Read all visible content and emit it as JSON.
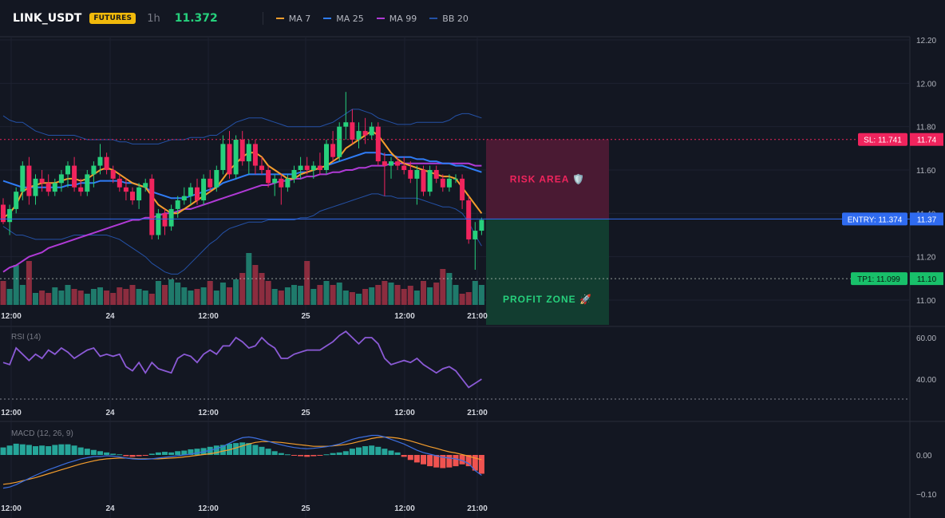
{
  "header": {
    "symbol": "LINK_USDT",
    "badge": "FUTURES",
    "timeframe": "1h",
    "price": "11.372",
    "legend": [
      {
        "label": "MA 7",
        "color": "#f59e2d"
      },
      {
        "label": "MA 25",
        "color": "#2f7cf6"
      },
      {
        "label": "MA 99",
        "color": "#b03ad6"
      },
      {
        "label": "BB 20",
        "color": "#2451a6"
      }
    ]
  },
  "price_axis": {
    "ticks": [
      "12.20",
      "12.00",
      "11.80",
      "11.60",
      "11.40",
      "11.20",
      "11.00"
    ],
    "values": [
      12.2,
      12.0,
      11.8,
      11.6,
      11.4,
      11.2,
      11.0
    ]
  },
  "time_axis": {
    "ticks": [
      "12:00",
      "24",
      "12:00",
      "25",
      "12:00",
      "21:00"
    ]
  },
  "levels": {
    "sl": {
      "label": "SL: 11.741",
      "value": "11.74",
      "price": 11.741,
      "color": "#f0245d"
    },
    "entry": {
      "label": "ENTRY: 11.374",
      "value": "11.37",
      "price": 11.374,
      "color": "#2f6bf0"
    },
    "tp1": {
      "label": "TP1: 11.099",
      "value": "11.10",
      "price": 11.099,
      "color": "#18c06a"
    }
  },
  "zones": {
    "risk": {
      "label": "RISK AREA 🛡️"
    },
    "profit": {
      "label": "PROFIT ZONE 🚀"
    }
  },
  "rsi": {
    "title": "RSI (14)",
    "ticks": [
      "60.00",
      "40.00"
    ],
    "tick_values": [
      60,
      40
    ]
  },
  "macd": {
    "title": "MACD (12, 26, 9)",
    "ticks": [
      "0.00",
      "−0.10"
    ],
    "tick_values": [
      0,
      -0.1
    ]
  },
  "colors": {
    "up": "#26d07c",
    "down": "#f0245d",
    "vol_up": "#1f7a6b",
    "vol_down": "#8c2d3f",
    "rsi": "#8b5ad6",
    "macd_line": "#3d6fe0",
    "signal_line": "#f59e2d"
  },
  "chart_data": {
    "type": "candlestick",
    "price_range": [
      10.98,
      12.22
    ],
    "candles": [
      [
        11.44,
        11.47,
        11.35,
        11.36
      ],
      [
        11.36,
        11.44,
        11.3,
        11.42
      ],
      [
        11.42,
        11.52,
        11.4,
        11.5
      ],
      [
        11.5,
        11.64,
        11.46,
        11.62
      ],
      [
        11.62,
        11.66,
        11.44,
        11.48
      ],
      [
        11.48,
        11.58,
        11.44,
        11.56
      ],
      [
        11.56,
        11.6,
        11.5,
        11.54
      ],
      [
        11.54,
        11.58,
        11.48,
        11.5
      ],
      [
        11.5,
        11.56,
        11.48,
        11.54
      ],
      [
        11.54,
        11.6,
        11.5,
        11.58
      ],
      [
        11.58,
        11.64,
        11.52,
        11.62
      ],
      [
        11.62,
        11.66,
        11.5,
        11.52
      ],
      [
        11.52,
        11.56,
        11.48,
        11.5
      ],
      [
        11.5,
        11.6,
        11.48,
        11.58
      ],
      [
        11.58,
        11.64,
        11.52,
        11.62
      ],
      [
        11.62,
        11.72,
        11.58,
        11.66
      ],
      [
        11.66,
        11.68,
        11.58,
        11.6
      ],
      [
        11.6,
        11.62,
        11.54,
        11.56
      ],
      [
        11.56,
        11.58,
        11.5,
        11.52
      ],
      [
        11.52,
        11.56,
        11.46,
        11.5
      ],
      [
        11.5,
        11.52,
        11.44,
        11.46
      ],
      [
        11.46,
        11.54,
        11.42,
        11.52
      ],
      [
        11.52,
        11.56,
        11.5,
        11.54
      ],
      [
        11.56,
        11.58,
        11.28,
        11.3
      ],
      [
        11.3,
        11.42,
        11.28,
        11.4
      ],
      [
        11.4,
        11.42,
        11.3,
        11.34
      ],
      [
        11.34,
        11.44,
        11.32,
        11.42
      ],
      [
        11.42,
        11.48,
        11.38,
        11.46
      ],
      [
        11.46,
        11.52,
        11.44,
        11.48
      ],
      [
        11.48,
        11.54,
        11.44,
        11.52
      ],
      [
        11.52,
        11.56,
        11.44,
        11.46
      ],
      [
        11.46,
        11.58,
        11.44,
        11.56
      ],
      [
        11.56,
        11.6,
        11.5,
        11.52
      ],
      [
        11.52,
        11.62,
        11.5,
        11.6
      ],
      [
        11.6,
        11.76,
        11.58,
        11.72
      ],
      [
        11.72,
        11.78,
        11.56,
        11.58
      ],
      [
        11.58,
        11.76,
        11.56,
        11.74
      ],
      [
        11.74,
        11.78,
        11.62,
        11.64
      ],
      [
        11.64,
        11.74,
        11.58,
        11.72
      ],
      [
        11.72,
        11.74,
        11.58,
        11.62
      ],
      [
        11.62,
        11.66,
        11.58,
        11.6
      ],
      [
        11.6,
        11.62,
        11.52,
        11.54
      ],
      [
        11.54,
        11.58,
        11.48,
        11.56
      ],
      [
        11.56,
        11.58,
        11.44,
        11.52
      ],
      [
        11.52,
        11.58,
        11.5,
        11.56
      ],
      [
        11.56,
        11.62,
        11.54,
        11.6
      ],
      [
        11.6,
        11.66,
        11.56,
        11.62
      ],
      [
        11.62,
        11.66,
        11.58,
        11.6
      ],
      [
        11.6,
        11.64,
        11.56,
        11.62
      ],
      [
        11.62,
        11.68,
        11.58,
        11.6
      ],
      [
        11.6,
        11.74,
        11.58,
        11.72
      ],
      [
        11.72,
        11.78,
        11.64,
        11.66
      ],
      [
        11.66,
        11.82,
        11.64,
        11.8
      ],
      [
        11.8,
        11.96,
        11.74,
        11.82
      ],
      [
        11.82,
        11.88,
        11.72,
        11.74
      ],
      [
        11.74,
        11.82,
        11.7,
        11.78
      ],
      [
        11.78,
        11.84,
        11.72,
        11.76
      ],
      [
        11.76,
        11.82,
        11.74,
        11.8
      ],
      [
        11.8,
        11.82,
        11.62,
        11.64
      ],
      [
        11.64,
        11.68,
        11.48,
        11.62
      ],
      [
        11.62,
        11.66,
        11.56,
        11.64
      ],
      [
        11.64,
        11.66,
        11.6,
        11.62
      ],
      [
        11.62,
        11.66,
        11.58,
        11.6
      ],
      [
        11.6,
        11.64,
        11.54,
        11.56
      ],
      [
        11.56,
        11.62,
        11.44,
        11.6
      ],
      [
        11.6,
        11.62,
        11.48,
        11.5
      ],
      [
        11.5,
        11.62,
        11.48,
        11.6
      ],
      [
        11.6,
        11.62,
        11.54,
        11.56
      ],
      [
        11.56,
        11.58,
        11.5,
        11.52
      ],
      [
        11.52,
        11.58,
        11.5,
        11.56
      ],
      [
        11.56,
        11.58,
        11.54,
        11.56
      ],
      [
        11.56,
        11.58,
        11.42,
        11.46
      ],
      [
        11.46,
        11.48,
        11.26,
        11.28
      ],
      [
        11.28,
        11.36,
        11.14,
        11.32
      ],
      [
        11.32,
        11.38,
        11.3,
        11.37
      ]
    ],
    "volume": [
      30,
      20,
      50,
      25,
      55,
      15,
      18,
      15,
      22,
      18,
      25,
      20,
      18,
      14,
      20,
      22,
      18,
      15,
      22,
      20,
      25,
      20,
      18,
      14,
      30,
      25,
      32,
      28,
      22,
      18,
      20,
      22,
      30,
      18,
      28,
      22,
      32,
      40,
      65,
      50,
      40,
      30,
      20,
      18,
      22,
      25,
      24,
      55,
      20,
      25,
      30,
      25,
      28,
      18,
      16,
      14,
      20,
      22,
      25,
      30,
      28,
      25,
      20,
      24,
      18,
      30,
      22,
      28,
      45,
      40,
      25,
      14,
      16,
      30,
      25
    ],
    "ma7": [
      11.38,
      11.4,
      11.44,
      11.5,
      11.52,
      11.53,
      11.54,
      11.54,
      11.54,
      11.55,
      11.56,
      11.56,
      11.55,
      11.56,
      11.58,
      11.6,
      11.61,
      11.6,
      11.58,
      11.56,
      11.54,
      11.53,
      11.52,
      11.48,
      11.44,
      11.42,
      11.4,
      11.4,
      11.42,
      11.44,
      11.46,
      11.48,
      11.5,
      11.52,
      11.56,
      11.6,
      11.63,
      11.66,
      11.68,
      11.68,
      11.66,
      11.62,
      11.6,
      11.58,
      11.56,
      11.56,
      11.58,
      11.59,
      11.6,
      11.61,
      11.62,
      11.64,
      11.66,
      11.7,
      11.72,
      11.74,
      11.76,
      11.78,
      11.76,
      11.72,
      11.68,
      11.65,
      11.63,
      11.62,
      11.61,
      11.6,
      11.59,
      11.58,
      11.57,
      11.57,
      11.56,
      11.52,
      11.48,
      11.44,
      11.4
    ],
    "ma25": [
      11.55,
      11.54,
      11.53,
      11.52,
      11.52,
      11.52,
      11.52,
      11.52,
      11.52,
      11.52,
      11.53,
      11.53,
      11.54,
      11.54,
      11.54,
      11.55,
      11.55,
      11.55,
      11.55,
      11.54,
      11.54,
      11.53,
      11.52,
      11.5,
      11.49,
      11.48,
      11.47,
      11.47,
      11.47,
      11.48,
      11.49,
      11.5,
      11.51,
      11.52,
      11.54,
      11.55,
      11.56,
      11.57,
      11.58,
      11.58,
      11.58,
      11.58,
      11.58,
      11.58,
      11.58,
      11.58,
      11.59,
      11.59,
      11.6,
      11.61,
      11.62,
      11.63,
      11.64,
      11.65,
      11.66,
      11.67,
      11.68,
      11.68,
      11.68,
      11.67,
      11.67,
      11.66,
      11.66,
      11.66,
      11.65,
      11.65,
      11.64,
      11.64,
      11.63,
      11.63,
      11.62,
      11.62,
      11.61,
      11.6,
      11.59
    ],
    "ma99": [
      11.13,
      11.15,
      11.16,
      11.18,
      11.2,
      11.21,
      11.22,
      11.24,
      11.25,
      11.26,
      11.27,
      11.28,
      11.29,
      11.3,
      11.31,
      11.32,
      11.33,
      11.34,
      11.35,
      11.36,
      11.37,
      11.37,
      11.38,
      11.38,
      11.39,
      11.4,
      11.4,
      11.41,
      11.42,
      11.42,
      11.43,
      11.44,
      11.45,
      11.46,
      11.47,
      11.48,
      11.49,
      11.5,
      11.51,
      11.52,
      11.53,
      11.53,
      11.54,
      11.55,
      11.55,
      11.56,
      11.56,
      11.57,
      11.57,
      11.58,
      11.58,
      11.59,
      11.59,
      11.6,
      11.6,
      11.61,
      11.61,
      11.62,
      11.62,
      11.62,
      11.63,
      11.63,
      11.63,
      11.63,
      11.63,
      11.63,
      11.63,
      11.63,
      11.63,
      11.63,
      11.63,
      11.63,
      11.63,
      11.62,
      11.62
    ],
    "bb_upper": [
      11.85,
      11.83,
      11.82,
      11.82,
      11.8,
      11.78,
      11.77,
      11.76,
      11.76,
      11.76,
      11.76,
      11.76,
      11.75,
      11.74,
      11.74,
      11.74,
      11.74,
      11.74,
      11.73,
      11.73,
      11.72,
      11.72,
      11.72,
      11.72,
      11.72,
      11.73,
      11.74,
      11.74,
      11.74,
      11.75,
      11.75,
      11.75,
      11.76,
      11.76,
      11.78,
      11.8,
      11.82,
      11.83,
      11.84,
      11.84,
      11.84,
      11.83,
      11.82,
      11.81,
      11.8,
      11.8,
      11.8,
      11.8,
      11.8,
      11.8,
      11.81,
      11.82,
      11.84,
      11.86,
      11.88,
      11.88,
      11.87,
      11.86,
      11.84,
      11.83,
      11.82,
      11.81,
      11.81,
      11.81,
      11.82,
      11.82,
      11.82,
      11.82,
      11.82,
      11.83,
      11.85,
      11.86,
      11.86,
      11.85,
      11.84
    ],
    "bb_lower": [
      11.34,
      11.32,
      11.3,
      11.3,
      11.29,
      11.28,
      11.28,
      11.28,
      11.28,
      11.28,
      11.29,
      11.3,
      11.3,
      11.3,
      11.3,
      11.3,
      11.3,
      11.29,
      11.28,
      11.26,
      11.24,
      11.22,
      11.2,
      11.17,
      11.15,
      11.13,
      11.12,
      11.12,
      11.14,
      11.17,
      11.2,
      11.23,
      11.26,
      11.28,
      11.31,
      11.33,
      11.34,
      11.35,
      11.36,
      11.36,
      11.36,
      11.37,
      11.37,
      11.37,
      11.37,
      11.37,
      11.38,
      11.38,
      11.39,
      11.41,
      11.42,
      11.43,
      11.44,
      11.45,
      11.46,
      11.47,
      11.48,
      11.49,
      11.49,
      11.48,
      11.48,
      11.47,
      11.47,
      11.47,
      11.47,
      11.46,
      11.45,
      11.44,
      11.43,
      11.43,
      11.42,
      11.4,
      11.36,
      11.3,
      11.25
    ],
    "rsi_values": [
      48,
      47,
      55,
      52,
      49,
      52,
      50,
      54,
      52,
      55,
      53,
      50,
      52,
      54,
      55,
      51,
      52,
      51,
      52,
      46,
      44,
      48,
      43,
      48,
      45,
      44,
      43,
      50,
      52,
      51,
      48,
      52,
      54,
      52,
      56,
      56,
      60,
      58,
      55,
      56,
      60,
      57,
      55,
      50,
      50,
      52,
      53,
      54,
      54,
      54,
      56,
      58,
      61,
      63,
      60,
      57,
      60,
      60,
      57,
      50,
      47,
      48,
      49,
      48,
      50,
      47,
      45,
      43,
      45,
      46,
      44,
      40,
      36,
      38,
      40
    ],
    "macd_hist": [
      0.012,
      0.015,
      0.018,
      0.017,
      0.016,
      0.014,
      0.015,
      0.014,
      0.016,
      0.017,
      0.017,
      0.015,
      0.012,
      0.01,
      0.008,
      0.006,
      0.004,
      0.002,
      0.001,
      -0.002,
      -0.003,
      -0.002,
      -0.001,
      0.002,
      0.004,
      0.005,
      0.004,
      0.006,
      0.007,
      0.009,
      0.01,
      0.011,
      0.013,
      0.015,
      0.016,
      0.018,
      0.019,
      0.02,
      0.019,
      0.016,
      0.013,
      0.01,
      0.006,
      0.003,
      0.001,
      -0.001,
      -0.002,
      -0.003,
      -0.002,
      -0.001,
      0.001,
      0.003,
      0.004,
      0.006,
      0.01,
      0.012,
      0.014,
      0.015,
      0.013,
      0.01,
      0.007,
      0.004,
      -0.003,
      -0.008,
      -0.012,
      -0.015,
      -0.018,
      -0.02,
      -0.021,
      -0.02,
      -0.018,
      -0.015,
      -0.018,
      -0.025,
      -0.03
    ],
    "macd_line": [
      -0.085,
      -0.082,
      -0.076,
      -0.068,
      -0.06,
      -0.052,
      -0.045,
      -0.038,
      -0.032,
      -0.026,
      -0.02,
      -0.015,
      -0.01,
      -0.007,
      -0.004,
      -0.004,
      -0.002,
      -0.003,
      -0.005,
      -0.008,
      -0.01,
      -0.011,
      -0.011,
      -0.01,
      -0.008,
      -0.006,
      -0.004,
      -0.002,
      0.0,
      0.002,
      0.005,
      0.008,
      0.012,
      0.016,
      0.022,
      0.03,
      0.038,
      0.044,
      0.046,
      0.043,
      0.039,
      0.035,
      0.03,
      0.026,
      0.022,
      0.019,
      0.017,
      0.016,
      0.017,
      0.019,
      0.021,
      0.024,
      0.028,
      0.034,
      0.04,
      0.044,
      0.047,
      0.05,
      0.05,
      0.046,
      0.04,
      0.034,
      0.028,
      0.02,
      0.012,
      0.006,
      0.002,
      -0.002,
      -0.006,
      -0.008,
      -0.01,
      -0.014,
      -0.022,
      -0.04,
      -0.052
    ],
    "signal_line": [
      -0.075,
      -0.073,
      -0.07,
      -0.066,
      -0.062,
      -0.058,
      -0.053,
      -0.048,
      -0.043,
      -0.038,
      -0.033,
      -0.028,
      -0.023,
      -0.019,
      -0.015,
      -0.012,
      -0.01,
      -0.009,
      -0.008,
      -0.008,
      -0.009,
      -0.01,
      -0.01,
      -0.01,
      -0.01,
      -0.009,
      -0.008,
      -0.007,
      -0.005,
      -0.003,
      -0.001,
      0.001,
      0.003,
      0.006,
      0.01,
      0.013,
      0.018,
      0.023,
      0.028,
      0.032,
      0.034,
      0.034,
      0.033,
      0.032,
      0.03,
      0.028,
      0.026,
      0.024,
      0.022,
      0.022,
      0.022,
      0.023,
      0.025,
      0.027,
      0.03,
      0.034,
      0.038,
      0.042,
      0.045,
      0.046,
      0.045,
      0.043,
      0.04,
      0.036,
      0.031,
      0.026,
      0.021,
      0.017,
      0.012,
      0.008,
      0.005,
      0.001,
      -0.003,
      -0.008,
      -0.012
    ]
  }
}
